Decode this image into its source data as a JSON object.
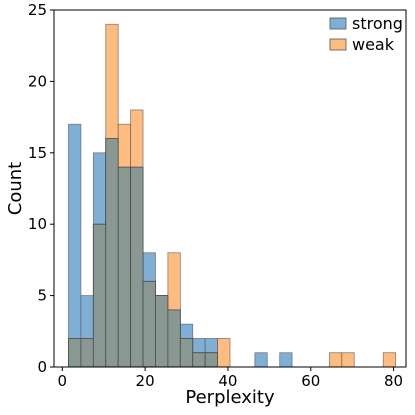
{
  "chart_data": {
    "type": "bar",
    "subtype": "overlaid-histogram",
    "title": "",
    "xlabel": "Perplexity",
    "ylabel": "Count",
    "xlim": [
      -2,
      83
    ],
    "ylim": [
      0,
      25
    ],
    "xticks": [
      0,
      20,
      40,
      60,
      80
    ],
    "yticks": [
      0,
      5,
      10,
      15,
      20,
      25
    ],
    "grid": false,
    "legend_position": "top-right",
    "series": [
      {
        "name": "strong",
        "color": "#7fafd4",
        "bins": [
          {
            "x0": 1.5,
            "x1": 4.5,
            "value": 17
          },
          {
            "x0": 4.5,
            "x1": 7.5,
            "value": 5
          },
          {
            "x0": 7.5,
            "x1": 10.5,
            "value": 15
          },
          {
            "x0": 10.5,
            "x1": 13.5,
            "value": 16
          },
          {
            "x0": 13.5,
            "x1": 16.5,
            "value": 14
          },
          {
            "x0": 16.5,
            "x1": 19.5,
            "value": 14
          },
          {
            "x0": 19.5,
            "x1": 22.5,
            "value": 8
          },
          {
            "x0": 22.5,
            "x1": 25.5,
            "value": 5
          },
          {
            "x0": 25.5,
            "x1": 28.5,
            "value": 4
          },
          {
            "x0": 28.5,
            "x1": 31.5,
            "value": 3
          },
          {
            "x0": 31.5,
            "x1": 34.5,
            "value": 2
          },
          {
            "x0": 34.5,
            "x1": 37.5,
            "value": 2
          },
          {
            "x0": 37.5,
            "x1": 40.5,
            "value": 0
          },
          {
            "x0": 46.5,
            "x1": 49.5,
            "value": 1
          },
          {
            "x0": 52.5,
            "x1": 55.5,
            "value": 1
          }
        ]
      },
      {
        "name": "weak",
        "color": "#ffbc80",
        "bins": [
          {
            "x0": 1.5,
            "x1": 4.5,
            "value": 2
          },
          {
            "x0": 4.5,
            "x1": 7.5,
            "value": 2
          },
          {
            "x0": 7.5,
            "x1": 10.5,
            "value": 10
          },
          {
            "x0": 10.5,
            "x1": 13.5,
            "value": 24
          },
          {
            "x0": 13.5,
            "x1": 16.5,
            "value": 17
          },
          {
            "x0": 16.5,
            "x1": 19.5,
            "value": 18
          },
          {
            "x0": 19.5,
            "x1": 22.5,
            "value": 6
          },
          {
            "x0": 22.5,
            "x1": 25.5,
            "value": 5
          },
          {
            "x0": 25.5,
            "x1": 28.5,
            "value": 8
          },
          {
            "x0": 28.5,
            "x1": 31.5,
            "value": 2
          },
          {
            "x0": 31.5,
            "x1": 34.5,
            "value": 1
          },
          {
            "x0": 34.5,
            "x1": 37.5,
            "value": 1
          },
          {
            "x0": 37.5,
            "x1": 40.5,
            "value": 2
          },
          {
            "x0": 64.5,
            "x1": 67.5,
            "value": 1
          },
          {
            "x0": 67.5,
            "x1": 70.5,
            "value": 1
          },
          {
            "x0": 77.5,
            "x1": 80.5,
            "value": 1
          }
        ]
      }
    ],
    "overlap_color": "#8a9893"
  }
}
